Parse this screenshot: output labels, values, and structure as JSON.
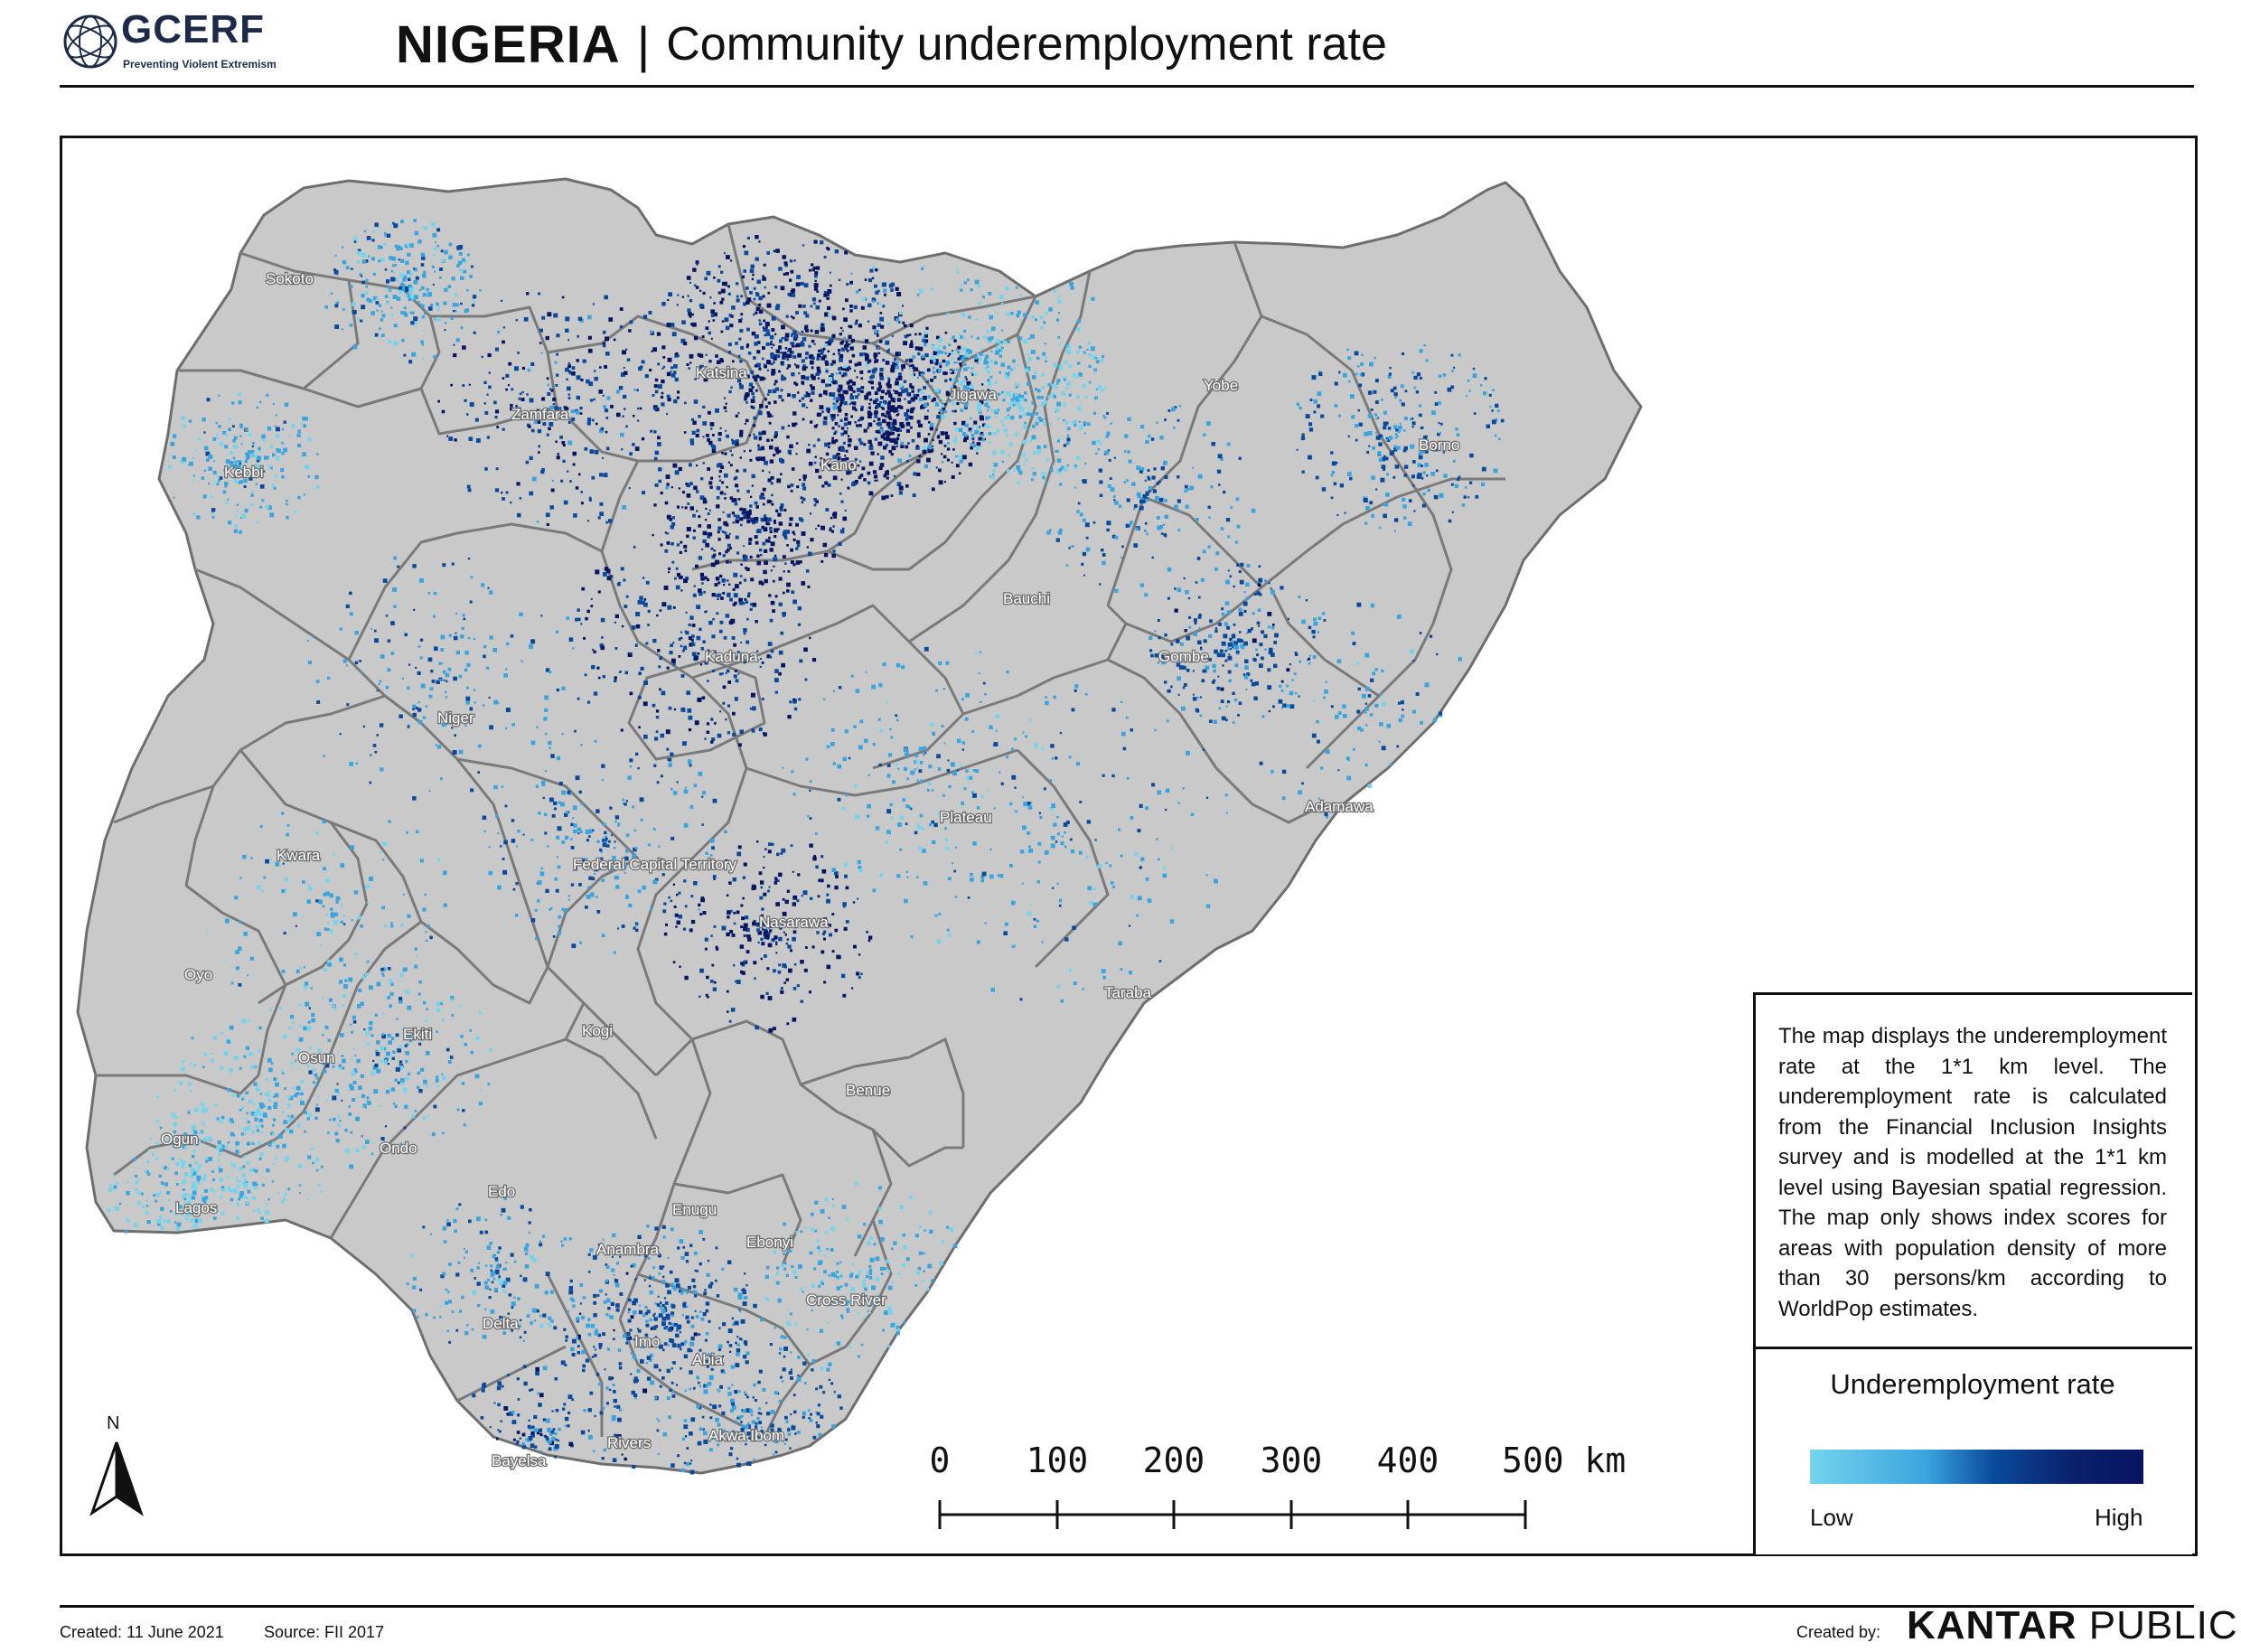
{
  "header": {
    "logo_text": "GCERF",
    "logo_tagline": "Preventing Violent Extremism",
    "country": "NIGERIA",
    "separator": "|",
    "subtitle": "Community underemployment rate"
  },
  "map": {
    "land_color": "#c9c9c9",
    "boundary_color": "#7a7a7a",
    "state_labels": [
      "Sokoto",
      "Katsina",
      "Jigawa",
      "Yobe",
      "Zamfara",
      "Kano",
      "Borno",
      "Kebbi",
      "Bauchi",
      "Kaduna",
      "Gombe",
      "Niger",
      "Adamawa",
      "Plateau",
      "Kwara",
      "Federal Capital Territory",
      "Nasarawa",
      "Oyo",
      "Taraba",
      "Ekiti",
      "Osun",
      "Kogi",
      "Benue",
      "Ogun",
      "Ondo",
      "Edo",
      "Lagos",
      "Enugu",
      "Anambra",
      "Ebonyi",
      "Cross River",
      "Delta",
      "Imo",
      "Abia",
      "Akwa Ibom",
      "Bayelsa",
      "Rivers"
    ]
  },
  "description": "The map displays the underemployment rate at the 1*1 km level. The underemployment rate is calculated from the Financial Inclusion Insights survey and is modelled at the 1*1 km level using Bayesian spatial regression. The map only shows index scores for areas with population density of more than 30 persons/km according to WorldPop estimates.",
  "legend": {
    "title": "Underemployment rate",
    "low_label": "Low",
    "high_label": "High",
    "colors": [
      "#74d4ec",
      "#3aa4de",
      "#0a4a9c",
      "#071562"
    ]
  },
  "scale_bar": {
    "ticks": [
      "0",
      "100",
      "200",
      "300",
      "400"
    ],
    "last_tick": "500 km"
  },
  "north_arrow": {
    "label": "N"
  },
  "footer": {
    "created": "Created: 11 June 2021",
    "source": "Source: FII 2017",
    "created_by": "Created by:",
    "brand_bold": "KANTAR",
    "brand_regular": "PUBLIC"
  }
}
